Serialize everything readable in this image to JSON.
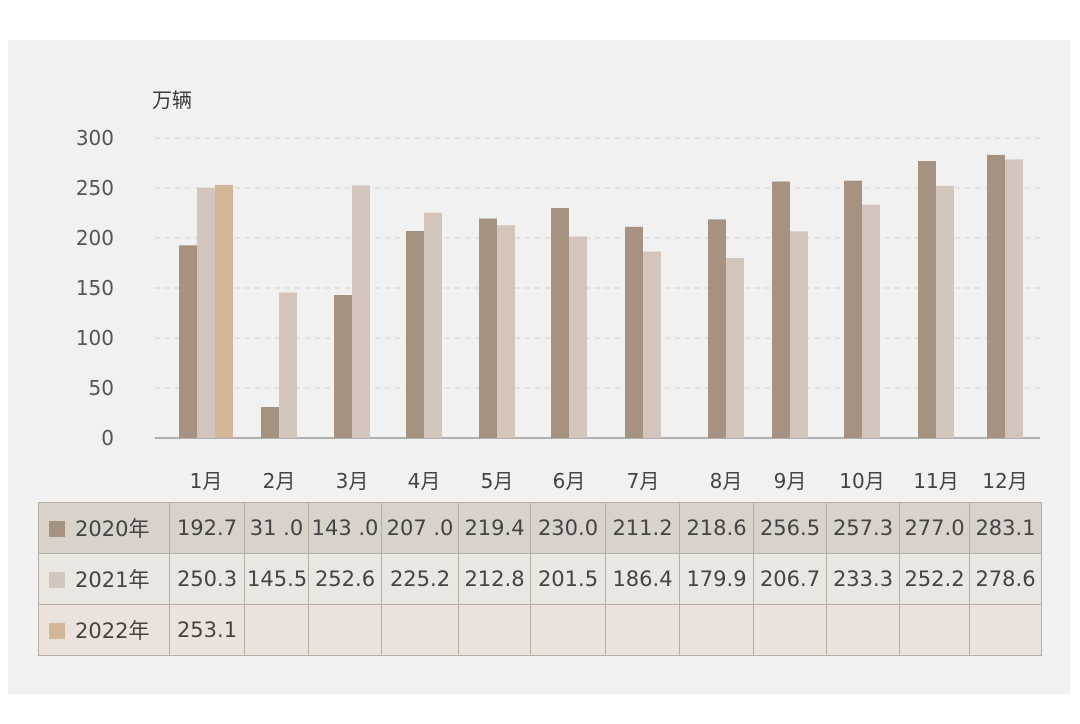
{
  "chart_data": {
    "type": "bar",
    "unit_label": "万辆",
    "categories": [
      "1月",
      "2月",
      "3月",
      "4月",
      "5月",
      "6月",
      "7月",
      "8月",
      "9月",
      "10月",
      "11月",
      "12月"
    ],
    "ylim": [
      0,
      300
    ],
    "yticks": [
      0,
      50,
      100,
      150,
      200,
      250,
      300
    ],
    "grid": true,
    "series": [
      {
        "name": "2020年",
        "color": "#a59281",
        "values": [
          192.7,
          31.0,
          143.0,
          207.0,
          219.4,
          230.0,
          211.2,
          218.6,
          256.5,
          257.3,
          277.0,
          283.1
        ]
      },
      {
        "name": "2021年",
        "color": "#d3c5bb",
        "values": [
          250.3,
          145.5,
          252.6,
          225.2,
          212.8,
          201.5,
          186.4,
          179.9,
          206.7,
          233.3,
          252.2,
          278.6
        ]
      },
      {
        "name": "2022年",
        "color": "#d2b698",
        "values": [
          253.1,
          null,
          null,
          null,
          null,
          null,
          null,
          null,
          null,
          null,
          null,
          null
        ]
      }
    ]
  },
  "table": {
    "rows": [
      {
        "label": "2020年",
        "cells": [
          "192.7",
          "31 .0",
          "143 .0",
          "207 .0",
          "219.4",
          "230.0",
          "211.2",
          "218.6",
          "256.5",
          "257.3",
          "277.0",
          "283.1"
        ]
      },
      {
        "label": "2021年",
        "cells": [
          "250.3",
          "145.5",
          "252.6",
          "225.2",
          "212.8",
          "201.5",
          "186.4",
          "179.9",
          "206.7",
          "233.3",
          "252.2",
          "278.6"
        ]
      },
      {
        "label": "2022年",
        "cells": [
          "253.1",
          "",
          "",
          "",
          "",
          "",
          "",
          "",
          "",
          "",
          "",
          ""
        ]
      }
    ]
  }
}
